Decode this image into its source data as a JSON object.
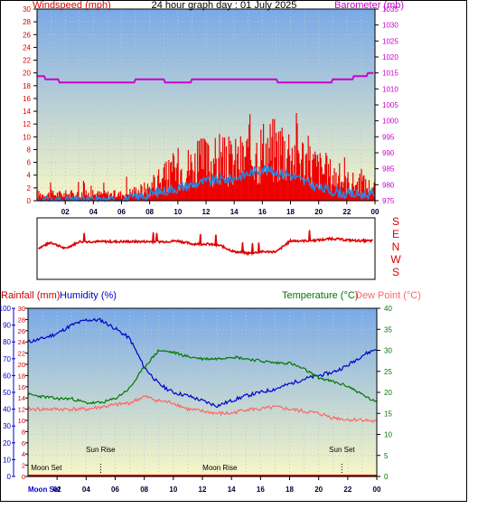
{
  "title": "24 hour graph day : 01 July 2025",
  "x_ticks": [
    "02",
    "04",
    "06",
    "08",
    "10",
    "12",
    "14",
    "16",
    "18",
    "20",
    "22",
    "00"
  ],
  "colors": {
    "wind": "#dd0000",
    "gust_fill": "#ee0000",
    "wind_avg": "#2a86e0",
    "barometer": "#cc00cc",
    "direction": "#dd0000",
    "rain": "#cc0000",
    "humidity": "#0000cc",
    "temperature": "#007700",
    "dewpoint": "#ff6666",
    "grid": "#b8c8d8"
  },
  "chart_data": [
    {
      "type": "line",
      "title": "24 hour graph day : 01 July 2025",
      "ylabel": "Windspeed (mph)",
      "y2label": "Barometer (mb)",
      "ylim": [
        0,
        30
      ],
      "y_ticks": [
        "0",
        "2",
        "4",
        "6",
        "8",
        "10",
        "12",
        "14",
        "16",
        "18",
        "20",
        "22",
        "24",
        "26",
        "28",
        "30"
      ],
      "y2lim": [
        975,
        1035
      ],
      "y2_ticks": [
        "975",
        "980",
        "985",
        "990",
        "995",
        "1000",
        "1005",
        "1010",
        "1015",
        "1020",
        "1025",
        "1030",
        "1035"
      ],
      "x": [
        0,
        2,
        4,
        6,
        8,
        10,
        12,
        14,
        16,
        18,
        20,
        22,
        24
      ],
      "series": [
        {
          "name": "Windspeed (mph)",
          "kind": "gust",
          "values": [
            1,
            1,
            1,
            1,
            2,
            5,
            6,
            6,
            8,
            8,
            5,
            3,
            2
          ]
        },
        {
          "name": "Windspeed (mph)",
          "kind": "average",
          "values": [
            0,
            0,
            0,
            0,
            1,
            2,
            3,
            3.5,
            5,
            4,
            2,
            1,
            1
          ]
        },
        {
          "name": "Barometer (mb)",
          "values": [
            1014,
            1012,
            1012,
            1012,
            1013,
            1012,
            1013,
            1013,
            1013,
            1012,
            1012,
            1013,
            1015
          ]
        }
      ]
    },
    {
      "type": "line",
      "ylabel_right": [
        "S",
        "E",
        "N",
        "W",
        "S"
      ],
      "ylim": [
        0,
        360
      ],
      "x": [
        0,
        1,
        2,
        3,
        4,
        5,
        6,
        7,
        8,
        9,
        10,
        11,
        12,
        13,
        14,
        15,
        16,
        17,
        18,
        19,
        20,
        21,
        22,
        23,
        24
      ],
      "series": [
        {
          "name": "Wind direction",
          "values": [
            180,
            220,
            180,
            225,
            225,
            225,
            225,
            225,
            225,
            225,
            230,
            210,
            210,
            200,
            160,
            150,
            160,
            160,
            230,
            230,
            235,
            245,
            235,
            230,
            230
          ]
        }
      ]
    },
    {
      "type": "line",
      "y_left_label_1": "Rainfall (mm)",
      "y_left_label_2": "Humidity (%)",
      "y_right_label_1": "Temperature (°C)",
      "y_right_label_2": "Dew Point (°C)",
      "rain_ticks": [
        "0",
        "2",
        "4",
        "6",
        "8",
        "10",
        "12",
        "14",
        "16",
        "18",
        "20",
        "22",
        "24",
        "26",
        "28",
        "30"
      ],
      "humidity_ticks": [
        "0",
        "10",
        "20",
        "30",
        "40",
        "50",
        "60",
        "70",
        "80",
        "90",
        "100"
      ],
      "temp_ticks": [
        "0",
        "5",
        "10",
        "15",
        "20",
        "25",
        "30",
        "35",
        "40"
      ],
      "ylim_temp": [
        0,
        40
      ],
      "ylim_humidity": [
        0,
        100
      ],
      "ylim_rain": [
        0,
        30
      ],
      "x": [
        0,
        1,
        2,
        3,
        4,
        5,
        6,
        7,
        8,
        9,
        10,
        11,
        12,
        13,
        14,
        15,
        16,
        17,
        18,
        19,
        20,
        21,
        22,
        23,
        24
      ],
      "series": [
        {
          "name": "Humidity (%)",
          "values": [
            80,
            82,
            85,
            90,
            93,
            93,
            88,
            82,
            65,
            55,
            50,
            48,
            45,
            42,
            45,
            48,
            50,
            52,
            55,
            58,
            60,
            62,
            66,
            72,
            76
          ]
        },
        {
          "name": "Temperature (°C)",
          "values": [
            19.5,
            19,
            18.5,
            18.5,
            17.5,
            17.5,
            18.5,
            21,
            26,
            30,
            29.5,
            28.5,
            28,
            28,
            28.5,
            28,
            27.5,
            27,
            27,
            25.5,
            23.5,
            22.5,
            21.5,
            19.5,
            17.5
          ]
        },
        {
          "name": "Dew Point (°C)",
          "values": [
            16,
            16,
            16,
            16,
            16,
            16.5,
            17,
            17.5,
            19,
            18,
            17.5,
            16,
            15.5,
            15,
            15,
            16,
            16,
            16.5,
            16,
            15.5,
            15,
            14,
            13.5,
            13.5,
            13
          ]
        },
        {
          "name": "Rainfall (mm)",
          "values": [
            0,
            0,
            0,
            0,
            0,
            0,
            0,
            0,
            0,
            0,
            0,
            0,
            0,
            0,
            0,
            0,
            0,
            0,
            0,
            0,
            0,
            0,
            0,
            0,
            0
          ]
        }
      ],
      "events": [
        {
          "label": "Sun Rise",
          "x": 5
        },
        {
          "label": "Sun Set",
          "x": 21.6
        },
        {
          "label": "Moon Set",
          "x": 0.2
        },
        {
          "label": "Moon Rise",
          "x": 13.2
        }
      ],
      "bottom_axis_prefix": "Moon Set"
    }
  ]
}
